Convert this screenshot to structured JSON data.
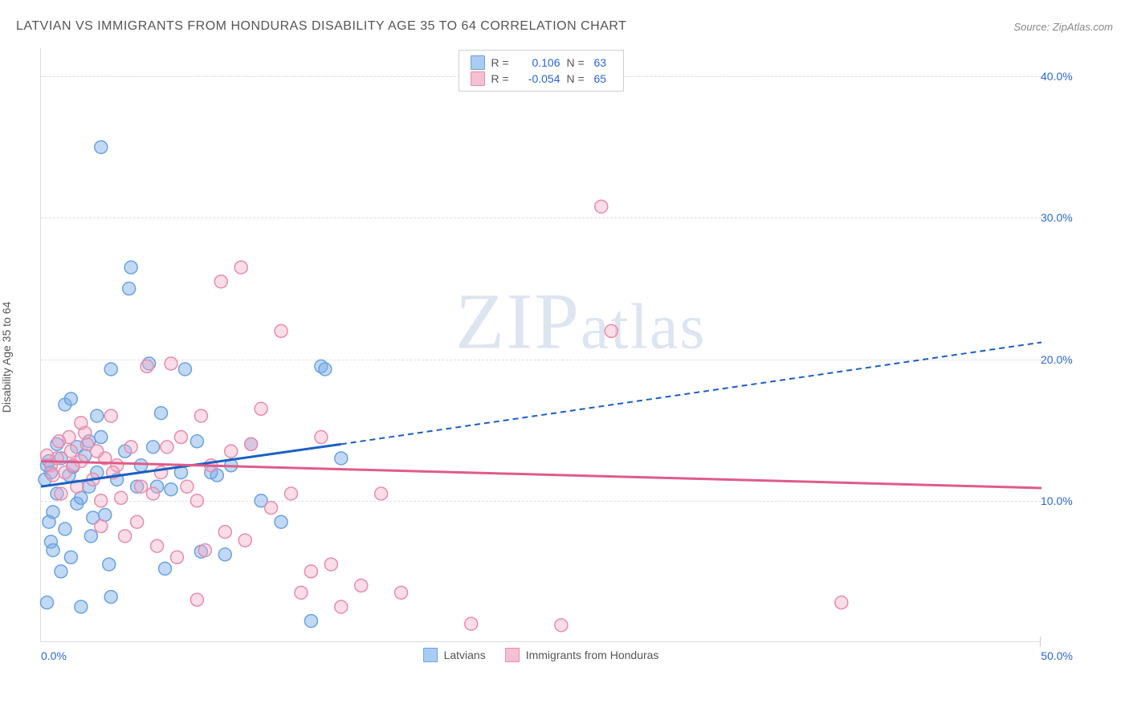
{
  "title": "LATVIAN VS IMMIGRANTS FROM HONDURAS DISABILITY AGE 35 TO 64 CORRELATION CHART",
  "source_text": "Source: ZipAtlas.com",
  "watermark_text_1": "ZIP",
  "watermark_text_2": "atlas",
  "ylabel": "Disability Age 35 to 64",
  "chart": {
    "type": "scatter-with-trend",
    "background_color": "#ffffff",
    "grid_color": "#dddddd",
    "axis_color": "#dddddd",
    "text_color": "#555555",
    "value_color": "#2968d1",
    "xlim": [
      0,
      50
    ],
    "ylim": [
      0,
      42
    ],
    "yticks": [
      10,
      20,
      30,
      40
    ],
    "ytick_labels": [
      "10.0%",
      "20.0%",
      "30.0%",
      "40.0%"
    ],
    "xtick_left": "0.0%",
    "xtick_right": "50.0%",
    "marker_radius": 8,
    "marker_stroke_width": 1.5,
    "trend_width": 3,
    "trend_dash": "7,5",
    "series": [
      {
        "name": "Latvians",
        "color_fill": "rgba(120,170,232,0.45)",
        "color_stroke": "#6aa2e0",
        "swatch_fill": "#a9cdf2",
        "swatch_stroke": "#6aa2e0",
        "trend_color": "#1b5fc2",
        "R": "0.106",
        "N": "63",
        "trend": {
          "x1": 0,
          "y1": 11.0,
          "x2_solid": 15,
          "y2_solid": 14.0,
          "x2": 50,
          "y2": 21.2
        },
        "points": [
          [
            0.2,
            11.5
          ],
          [
            0.4,
            12.8
          ],
          [
            0.6,
            9.2
          ],
          [
            0.8,
            10.5
          ],
          [
            1.0,
            13.0
          ],
          [
            1.2,
            8.0
          ],
          [
            1.4,
            11.8
          ],
          [
            1.6,
            12.4
          ],
          [
            1.8,
            9.8
          ],
          [
            2.0,
            10.2
          ],
          [
            2.2,
            13.2
          ],
          [
            2.4,
            11.0
          ],
          [
            2.6,
            8.8
          ],
          [
            2.8,
            12.0
          ],
          [
            3.0,
            14.5
          ],
          [
            3.2,
            9.0
          ],
          [
            3.5,
            19.3
          ],
          [
            3.0,
            35.0
          ],
          [
            1.2,
            16.8
          ],
          [
            0.5,
            7.1
          ],
          [
            0.3,
            2.8
          ],
          [
            2.5,
            7.5
          ],
          [
            4.4,
            25.0
          ],
          [
            4.5,
            26.5
          ],
          [
            3.4,
            5.5
          ],
          [
            4.8,
            11.0
          ],
          [
            5.0,
            12.5
          ],
          [
            5.4,
            19.7
          ],
          [
            5.6,
            13.8
          ],
          [
            6.0,
            16.2
          ],
          [
            6.5,
            10.8
          ],
          [
            7.0,
            12.0
          ],
          [
            6.2,
            5.2
          ],
          [
            7.2,
            19.3
          ],
          [
            7.8,
            14.2
          ],
          [
            8.0,
            6.4
          ],
          [
            8.5,
            12.0
          ],
          [
            8.8,
            11.8
          ],
          [
            2.0,
            2.5
          ],
          [
            3.5,
            3.2
          ],
          [
            1.0,
            5.0
          ],
          [
            1.5,
            6.0
          ],
          [
            9.2,
            6.2
          ],
          [
            9.5,
            12.5
          ],
          [
            14.0,
            19.5
          ],
          [
            14.2,
            19.3
          ],
          [
            15.0,
            13.0
          ],
          [
            13.5,
            1.5
          ],
          [
            11.0,
            10.0
          ],
          [
            12.0,
            8.5
          ],
          [
            10.5,
            14.0
          ],
          [
            0.8,
            14.0
          ],
          [
            0.3,
            12.5
          ],
          [
            0.5,
            12.0
          ],
          [
            1.8,
            13.8
          ],
          [
            2.4,
            14.2
          ],
          [
            3.8,
            11.5
          ],
          [
            4.2,
            13.5
          ],
          [
            5.8,
            11.0
          ],
          [
            2.8,
            16.0
          ],
          [
            1.5,
            17.2
          ],
          [
            0.4,
            8.5
          ],
          [
            0.6,
            6.5
          ]
        ]
      },
      {
        "name": "Immigrants from Honduras",
        "color_fill": "rgba(245,170,195,0.40)",
        "color_stroke": "#e98bac",
        "swatch_fill": "#f5c0d2",
        "swatch_stroke": "#e98bac",
        "trend_color": "#e05b89",
        "R": "-0.054",
        "N": "65",
        "trend": {
          "x1": 0,
          "y1": 12.8,
          "x2_solid": 50,
          "y2_solid": 10.9,
          "x2": 50,
          "y2": 10.9
        },
        "points": [
          [
            0.5,
            12.5
          ],
          [
            0.8,
            13.0
          ],
          [
            1.0,
            10.5
          ],
          [
            1.2,
            12.0
          ],
          [
            1.5,
            13.5
          ],
          [
            1.8,
            11.0
          ],
          [
            2.0,
            12.8
          ],
          [
            2.3,
            14.0
          ],
          [
            2.6,
            11.5
          ],
          [
            3.0,
            10.0
          ],
          [
            3.2,
            13.0
          ],
          [
            3.5,
            16.0
          ],
          [
            3.8,
            12.5
          ],
          [
            4.0,
            10.2
          ],
          [
            4.5,
            13.8
          ],
          [
            5.0,
            11.0
          ],
          [
            5.3,
            19.5
          ],
          [
            5.6,
            10.5
          ],
          [
            6.0,
            12.0
          ],
          [
            6.5,
            19.7
          ],
          [
            7.0,
            14.5
          ],
          [
            7.3,
            11.0
          ],
          [
            7.8,
            10.0
          ],
          [
            8.0,
            16.0
          ],
          [
            8.5,
            12.5
          ],
          [
            9.0,
            25.5
          ],
          [
            9.5,
            13.5
          ],
          [
            10.0,
            26.5
          ],
          [
            10.5,
            14.0
          ],
          [
            11.0,
            16.5
          ],
          [
            11.5,
            9.5
          ],
          [
            12.0,
            22.0
          ],
          [
            12.5,
            10.5
          ],
          [
            13.0,
            3.5
          ],
          [
            13.5,
            5.0
          ],
          [
            14.0,
            14.5
          ],
          [
            14.5,
            5.5
          ],
          [
            15.0,
            2.5
          ],
          [
            16.0,
            4.0
          ],
          [
            17.0,
            10.5
          ],
          [
            18.0,
            3.5
          ],
          [
            28.5,
            22.0
          ],
          [
            21.5,
            1.3
          ],
          [
            26.0,
            1.2
          ],
          [
            28.0,
            30.8
          ],
          [
            40.0,
            2.8
          ],
          [
            4.2,
            7.5
          ],
          [
            5.8,
            6.8
          ],
          [
            6.8,
            6.0
          ],
          [
            7.8,
            3.0
          ],
          [
            10.2,
            7.2
          ],
          [
            3.0,
            8.2
          ],
          [
            4.8,
            8.5
          ],
          [
            8.2,
            6.5
          ],
          [
            9.2,
            7.8
          ],
          [
            1.4,
            14.5
          ],
          [
            2.2,
            14.8
          ],
          [
            6.3,
            13.8
          ],
          [
            0.6,
            11.8
          ],
          [
            0.3,
            13.2
          ],
          [
            1.6,
            12.5
          ],
          [
            2.8,
            13.5
          ],
          [
            3.6,
            12.0
          ],
          [
            0.9,
            14.2
          ],
          [
            2.0,
            15.5
          ]
        ]
      }
    ]
  },
  "legend_bottom": {
    "label1": "Latvians",
    "label2": "Immigrants from Honduras"
  }
}
